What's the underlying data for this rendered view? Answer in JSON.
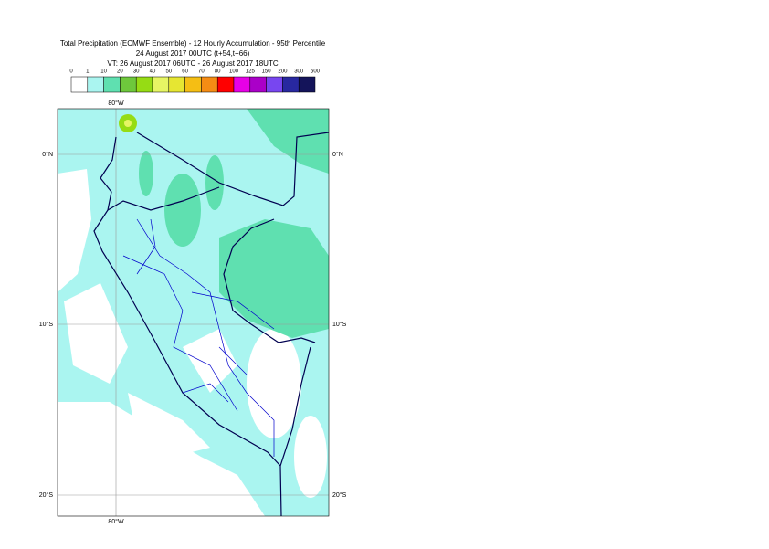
{
  "header": {
    "lines": [
      "Total Precipitation (ECMWF Ensemble) - 12 Hourly Accumulation - 95th Percentile",
      "24 August 2017 00UTC (t+54,t+66)",
      "VT: 26 August 2017 06UTC - 26 August 2017 18UTC"
    ]
  },
  "colorbar": {
    "ticks": [
      0,
      1,
      10,
      20,
      30,
      40,
      50,
      60,
      70,
      80,
      100,
      125,
      150,
      200,
      300,
      500
    ],
    "colors": [
      "#ffffff",
      "#aaf5f0",
      "#5fe0b0",
      "#6ec83c",
      "#96dc14",
      "#e6f564",
      "#e6e632",
      "#f5be14",
      "#f58c14",
      "#ff0000",
      "#e600e6",
      "#aa00c8",
      "#7846f0",
      "#2828a0",
      "#14145a"
    ]
  },
  "map": {
    "lon_label": "80°W",
    "lat_labels": [
      "0°N",
      "10°S",
      "20°S"
    ]
  }
}
